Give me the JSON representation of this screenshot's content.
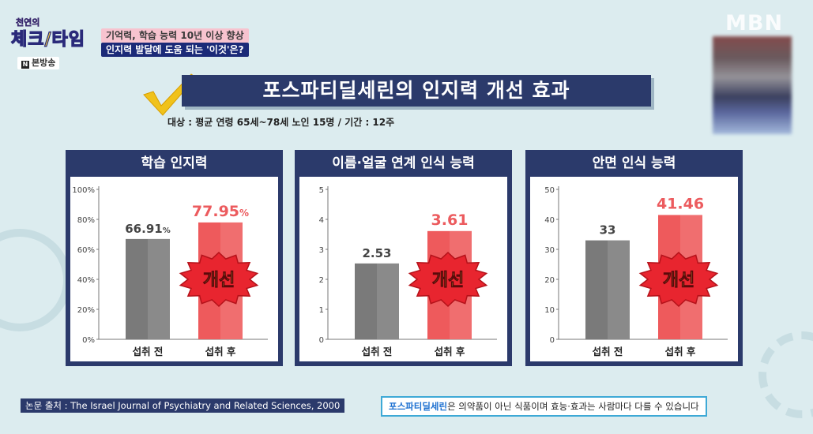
{
  "program": {
    "logo_top": "천연의",
    "logo_main_1": "체크",
    "logo_main_2": "타임",
    "caption_1": "기억력, 학습 능력 10년 이상 향상",
    "caption_2": "인지력 발달에 도움 되는 '이것'은?",
    "broadcast_label": "본방송",
    "channel": "MBN"
  },
  "headline": "포스파티딜세린의 인지력 개선 효과",
  "subject": "대상 : 평균 연령 65세~78세 노인 15명 / 기간 : 12주",
  "badge_text": "개선",
  "chart_data": [
    {
      "type": "bar",
      "title": "학습 인지력",
      "categories": [
        "섭취 전",
        "섭취 후"
      ],
      "values": [
        66.91,
        77.95
      ],
      "value_labels": [
        "66.91",
        "77.95"
      ],
      "value_suffix": "%",
      "ylim": [
        0,
        100
      ],
      "yticks": [
        0,
        20,
        40,
        60,
        80,
        100
      ],
      "ytick_suffix": "%",
      "ylabel": "",
      "xlabel": ""
    },
    {
      "type": "bar",
      "title": "이름·얼굴 연계 인식 능력",
      "categories": [
        "섭취 전",
        "섭취 후"
      ],
      "values": [
        2.53,
        3.61
      ],
      "value_labels": [
        "2.53",
        "3.61"
      ],
      "value_suffix": "",
      "ylim": [
        0,
        5
      ],
      "yticks": [
        0,
        1,
        2,
        3,
        4,
        5
      ],
      "ytick_suffix": "",
      "ylabel": "",
      "xlabel": ""
    },
    {
      "type": "bar",
      "title": "안면 인식 능력",
      "categories": [
        "섭취 전",
        "섭취 후"
      ],
      "values": [
        33,
        41.46
      ],
      "value_labels": [
        "33",
        "41.46"
      ],
      "value_suffix": "",
      "ylim": [
        0,
        50
      ],
      "yticks": [
        0,
        10,
        20,
        30,
        40,
        50
      ],
      "ytick_suffix": "",
      "ylabel": "",
      "xlabel": ""
    }
  ],
  "colors": {
    "before_bar": "#7a7a7a",
    "after_bar": "#ee5a5c",
    "after_label": "#ec5b5e",
    "before_label": "#444444",
    "panel_header": "#2b3a6b",
    "badge_fill": "#e8252f",
    "badge_text": "#fff25a"
  },
  "footer": {
    "source": "논문 출처 : The Israel Journal of Psychiatry and Related Sciences, 2000",
    "disclaimer_highlight": "포스파티딜세린",
    "disclaimer_rest": "은 의약품이 아닌 식품이며 효능·효과는 사람마다 다를 수 있습니다"
  }
}
